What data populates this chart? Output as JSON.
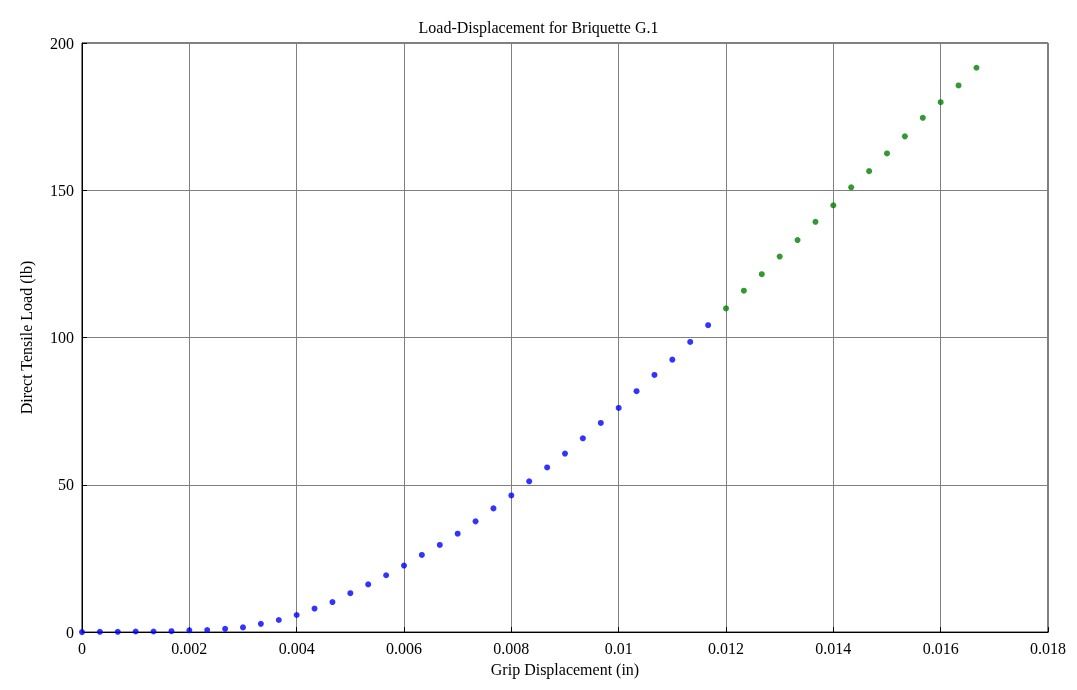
{
  "chart_data": {
    "type": "scatter",
    "title": "Load-Displacement for Briquette G.1",
    "xlabel": "Grip Displacement (in)",
    "ylabel": "Direct Tensile Load (lb)",
    "xlim": [
      0,
      0.018
    ],
    "xticks": [
      0,
      0.002,
      0.004,
      0.006,
      0.008,
      0.01,
      0.012,
      0.014,
      0.016,
      0.018
    ],
    "ylim": [
      0,
      200
    ],
    "yticks": [
      0,
      50,
      100,
      150,
      200
    ],
    "grid": true,
    "marker": "circle",
    "series": [
      {
        "color": "#0000ff",
        "x": [
          0,
          0.000333,
          0.000667,
          0.001,
          0.001333,
          0.001667,
          0.002,
          0.002333,
          0.002667,
          0.003,
          0.003333,
          0.003667,
          0.004,
          0.004333,
          0.004667,
          0.005,
          0.005333,
          0.005667,
          0.006,
          0.006333,
          0.006667,
          0.007,
          0.007333,
          0.007667,
          0.008,
          0.008333,
          0.008667,
          0.009,
          0.009333,
          0.009667,
          0.01,
          0.010333,
          0.010667,
          0.011,
          0.011333,
          0.011667
        ],
        "values": [
          0,
          0.1,
          0.1,
          0.2,
          0.2,
          0.3,
          0.6,
          0.7,
          1.1,
          1.6,
          2.8,
          4.1,
          5.8,
          8,
          10.2,
          13.2,
          16.2,
          19.3,
          22.6,
          26.2,
          29.6,
          33.4,
          37.6,
          42,
          46.4,
          51.2,
          55.9,
          60.6,
          65.8,
          71,
          76.1,
          81.8,
          87.3,
          92.5,
          98.5,
          104.2
        ]
      },
      {
        "color": "#008000",
        "x": [
          0.012,
          0.012333,
          0.012667,
          0.013,
          0.013333,
          0.013667,
          0.014,
          0.014333,
          0.014667,
          0.015,
          0.015333,
          0.015667,
          0.016,
          0.016333,
          0.016667
        ],
        "values": [
          109.9,
          115.9,
          121.5,
          127.5,
          133.1,
          139.3,
          144.9,
          151,
          156.5,
          162.5,
          168.3,
          174.6,
          179.9,
          185.6,
          191.6
        ]
      }
    ]
  }
}
